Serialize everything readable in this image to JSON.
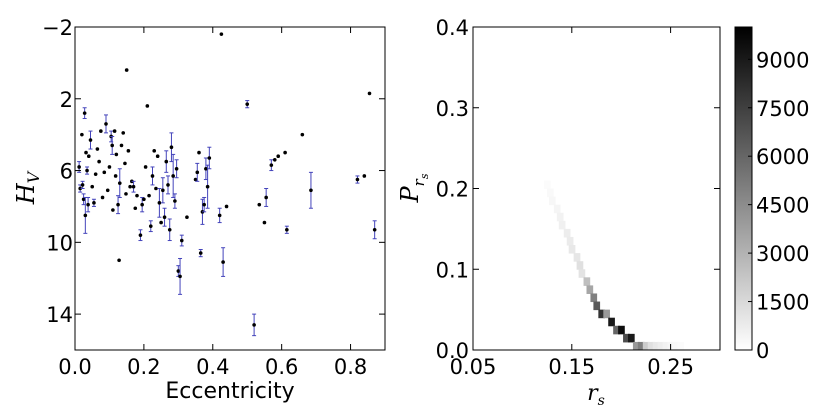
{
  "chart_data": [
    {
      "type": "scatter",
      "xlabel": "Eccentricity",
      "ylabel": "H",
      "ylabel_sub": "V",
      "xlim": [
        0.0,
        0.9
      ],
      "ylim": [
        -2,
        16
      ],
      "y_inverted": true,
      "grid": false,
      "xticks": [
        "0.0",
        "0.2",
        "0.4",
        "0.6",
        "0.8"
      ],
      "yticks": [
        "−2",
        "2",
        "6",
        "10",
        "14"
      ],
      "xtick_values": [
        0.0,
        0.2,
        0.4,
        0.6,
        0.8
      ],
      "ytick_values": [
        -2,
        2,
        6,
        10,
        14
      ],
      "errorbar_color": "#4444bb",
      "marker_color": "#000000",
      "points": [
        [
          0.012,
          5.8,
          0.3
        ],
        [
          0.015,
          7.0,
          0.2
        ],
        [
          0.02,
          4.0,
          0
        ],
        [
          0.022,
          6.8,
          0.2
        ],
        [
          0.025,
          7.6,
          0.3
        ],
        [
          0.028,
          2.8,
          0.3
        ],
        [
          0.03,
          8.5,
          1.0
        ],
        [
          0.032,
          5.0,
          0
        ],
        [
          0.035,
          6.0,
          0.2
        ],
        [
          0.038,
          7.9,
          0.4
        ],
        [
          0.04,
          5.2,
          0
        ],
        [
          0.045,
          4.3,
          0.5
        ],
        [
          0.05,
          6.9,
          0
        ],
        [
          0.055,
          7.8,
          0.2
        ],
        [
          0.06,
          6.2,
          0
        ],
        [
          0.065,
          4.8,
          0
        ],
        [
          0.07,
          5.5,
          0
        ],
        [
          0.075,
          3.8,
          0
        ],
        [
          0.08,
          7.5,
          0
        ],
        [
          0.085,
          6.1,
          0
        ],
        [
          0.09,
          3.4,
          0.5
        ],
        [
          0.095,
          7.1,
          0
        ],
        [
          0.1,
          5.8,
          0
        ],
        [
          0.105,
          4.1,
          0.3
        ],
        [
          0.108,
          4.6,
          0.5
        ],
        [
          0.11,
          8.2,
          0
        ],
        [
          0.115,
          3.8,
          0
        ],
        [
          0.118,
          6.3,
          0
        ],
        [
          0.12,
          5.1,
          0
        ],
        [
          0.125,
          7.9,
          0.5
        ],
        [
          0.128,
          11.0,
          0
        ],
        [
          0.13,
          6.7,
          0.8
        ],
        [
          0.135,
          4.6,
          0
        ],
        [
          0.14,
          3.9,
          0
        ],
        [
          0.145,
          5.6,
          0
        ],
        [
          0.148,
          7.3,
          0
        ],
        [
          0.15,
          0.4,
          0
        ],
        [
          0.155,
          4.9,
          0
        ],
        [
          0.16,
          6.9,
          0
        ],
        [
          0.165,
          6.6,
          0
        ],
        [
          0.17,
          6.9,
          0.3
        ],
        [
          0.175,
          8.1,
          0
        ],
        [
          0.18,
          7.4,
          0
        ],
        [
          0.19,
          9.6,
          0.3
        ],
        [
          0.195,
          7.9,
          0.4
        ],
        [
          0.2,
          7.6,
          0
        ],
        [
          0.205,
          5.8,
          0
        ],
        [
          0.21,
          2.4,
          0
        ],
        [
          0.215,
          7.4,
          0
        ],
        [
          0.22,
          9.1,
          0.3
        ],
        [
          0.225,
          6.3,
          0.5
        ],
        [
          0.23,
          4.9,
          0
        ],
        [
          0.235,
          7.0,
          0
        ],
        [
          0.24,
          5.2,
          0
        ],
        [
          0.245,
          7.8,
          0.8
        ],
        [
          0.25,
          8.9,
          0
        ],
        [
          0.255,
          7.1,
          0.7
        ],
        [
          0.26,
          8.6,
          0.5
        ],
        [
          0.265,
          5.5,
          0.6
        ],
        [
          0.27,
          6.8,
          0.5
        ],
        [
          0.275,
          9.3,
          0.6
        ],
        [
          0.28,
          4.7,
          0.8
        ],
        [
          0.285,
          6.3,
          1.2
        ],
        [
          0.29,
          7.7,
          0.4
        ],
        [
          0.295,
          5.9,
          0.5
        ],
        [
          0.3,
          11.6,
          0.3
        ],
        [
          0.305,
          11.9,
          1.0
        ],
        [
          0.31,
          9.9,
          0.3
        ],
        [
          0.325,
          8.6,
          0
        ],
        [
          0.35,
          6.5,
          0
        ],
        [
          0.355,
          6.1,
          0.5
        ],
        [
          0.36,
          5.0,
          0
        ],
        [
          0.365,
          10.6,
          0.2
        ],
        [
          0.37,
          8.3,
          0.7
        ],
        [
          0.375,
          7.9,
          0.4
        ],
        [
          0.38,
          5.9,
          0.6
        ],
        [
          0.385,
          6.9,
          1.2
        ],
        [
          0.39,
          5.3,
          0.6
        ],
        [
          0.42,
          8.5,
          0.4
        ],
        [
          0.425,
          -1.6,
          0
        ],
        [
          0.43,
          11.1,
          0.8
        ],
        [
          0.44,
          8.0,
          0
        ],
        [
          0.5,
          2.3,
          0.2
        ],
        [
          0.52,
          14.6,
          0.6
        ],
        [
          0.535,
          7.9,
          0
        ],
        [
          0.55,
          8.9,
          0
        ],
        [
          0.555,
          7.5,
          0.5
        ],
        [
          0.57,
          5.7,
          0.3
        ],
        [
          0.58,
          5.4,
          0
        ],
        [
          0.59,
          5.2,
          0
        ],
        [
          0.61,
          5.0,
          0
        ],
        [
          0.615,
          9.3,
          0.2
        ],
        [
          0.66,
          4.0,
          0
        ],
        [
          0.685,
          7.1,
          1.0
        ],
        [
          0.82,
          6.5,
          0.2
        ],
        [
          0.84,
          6.3,
          0
        ],
        [
          0.855,
          1.7,
          0
        ],
        [
          0.87,
          9.3,
          0.5
        ]
      ]
    },
    {
      "type": "heatmap",
      "xlabel": "r",
      "xlabel_sub": "s",
      "ylabel": "P",
      "ylabel_sub_base": "r",
      "ylabel_sub_sub": "s",
      "xlim": [
        0.05,
        0.3
      ],
      "ylim": [
        0.0,
        0.4
      ],
      "xticks": [
        "0.05",
        "0.15",
        "0.25"
      ],
      "xtick_values": [
        0.05,
        0.15,
        0.25
      ],
      "yticks": [
        "0.0",
        "0.1",
        "0.2",
        "0.3",
        "0.4"
      ],
      "ytick_values": [
        0.0,
        0.1,
        0.2,
        0.3,
        0.4
      ],
      "cell_width": 0.00625,
      "cell_height": 0.01,
      "colorbar_range": [
        0,
        10000
      ],
      "colorbar_ticks": [
        "0",
        "1500",
        "3000",
        "4500",
        "6000",
        "7500",
        "9000"
      ],
      "colorbar_tick_values": [
        0,
        1500,
        3000,
        4500,
        6000,
        7500,
        9000
      ],
      "cells": [
        [
          0.125,
          0.205,
          150
        ],
        [
          0.128,
          0.195,
          250
        ],
        [
          0.13,
          0.185,
          300
        ],
        [
          0.135,
          0.175,
          400
        ],
        [
          0.138,
          0.165,
          500
        ],
        [
          0.14,
          0.155,
          600
        ],
        [
          0.145,
          0.145,
          700
        ],
        [
          0.148,
          0.135,
          800
        ],
        [
          0.15,
          0.125,
          900
        ],
        [
          0.155,
          0.115,
          1000
        ],
        [
          0.158,
          0.105,
          1200
        ],
        [
          0.16,
          0.095,
          1100
        ],
        [
          0.165,
          0.085,
          2500
        ],
        [
          0.168,
          0.075,
          3500
        ],
        [
          0.172,
          0.065,
          5000
        ],
        [
          0.175,
          0.055,
          6500
        ],
        [
          0.18,
          0.045,
          8000
        ],
        [
          0.185,
          0.045,
          4000
        ],
        [
          0.19,
          0.035,
          9000
        ],
        [
          0.195,
          0.025,
          6000
        ],
        [
          0.2,
          0.025,
          9500
        ],
        [
          0.205,
          0.015,
          7000
        ],
        [
          0.21,
          0.015,
          9000
        ],
        [
          0.215,
          0.005,
          4000
        ],
        [
          0.22,
          0.005,
          5000
        ],
        [
          0.225,
          0.005,
          2000
        ],
        [
          0.23,
          0.005,
          1200
        ],
        [
          0.235,
          0.005,
          900
        ],
        [
          0.24,
          0.005,
          700
        ],
        [
          0.245,
          0.005,
          500
        ],
        [
          0.25,
          0.005,
          350
        ],
        [
          0.255,
          0.005,
          250
        ],
        [
          0.26,
          0.005,
          150
        ]
      ]
    }
  ]
}
